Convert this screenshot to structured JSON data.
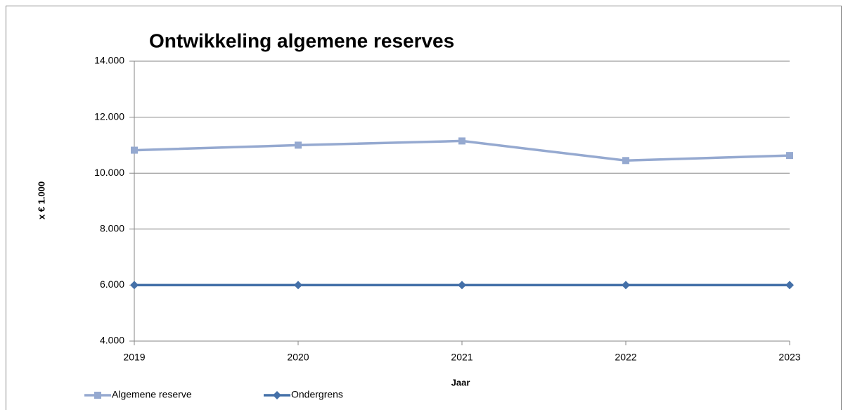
{
  "chart_data": {
    "type": "line",
    "title": "Ontwikkeling algemene reserves",
    "xlabel": "Jaar",
    "ylabel": "x € 1.000",
    "categories": [
      "2019",
      "2020",
      "2021",
      "2022",
      "2023"
    ],
    "series": [
      {
        "name": "Algemene reserve",
        "color": "#95a9d0",
        "marker": "square",
        "values": [
          10820,
          11000,
          11150,
          10450,
          10630
        ]
      },
      {
        "name": "Ondergrens",
        "color": "#4470a8",
        "marker": "diamond",
        "values": [
          6000,
          6000,
          6000,
          6000,
          6000
        ]
      }
    ],
    "ylim": [
      4000,
      14000
    ],
    "yticks": [
      {
        "value": 4000,
        "label": "4.000"
      },
      {
        "value": 6000,
        "label": "6.000"
      },
      {
        "value": 8000,
        "label": "8.000"
      },
      {
        "value": 10000,
        "label": "10.000"
      },
      {
        "value": 12000,
        "label": "12.000"
      },
      {
        "value": 14000,
        "label": "14.000"
      }
    ],
    "grid": true,
    "legend": "bottom-left"
  }
}
